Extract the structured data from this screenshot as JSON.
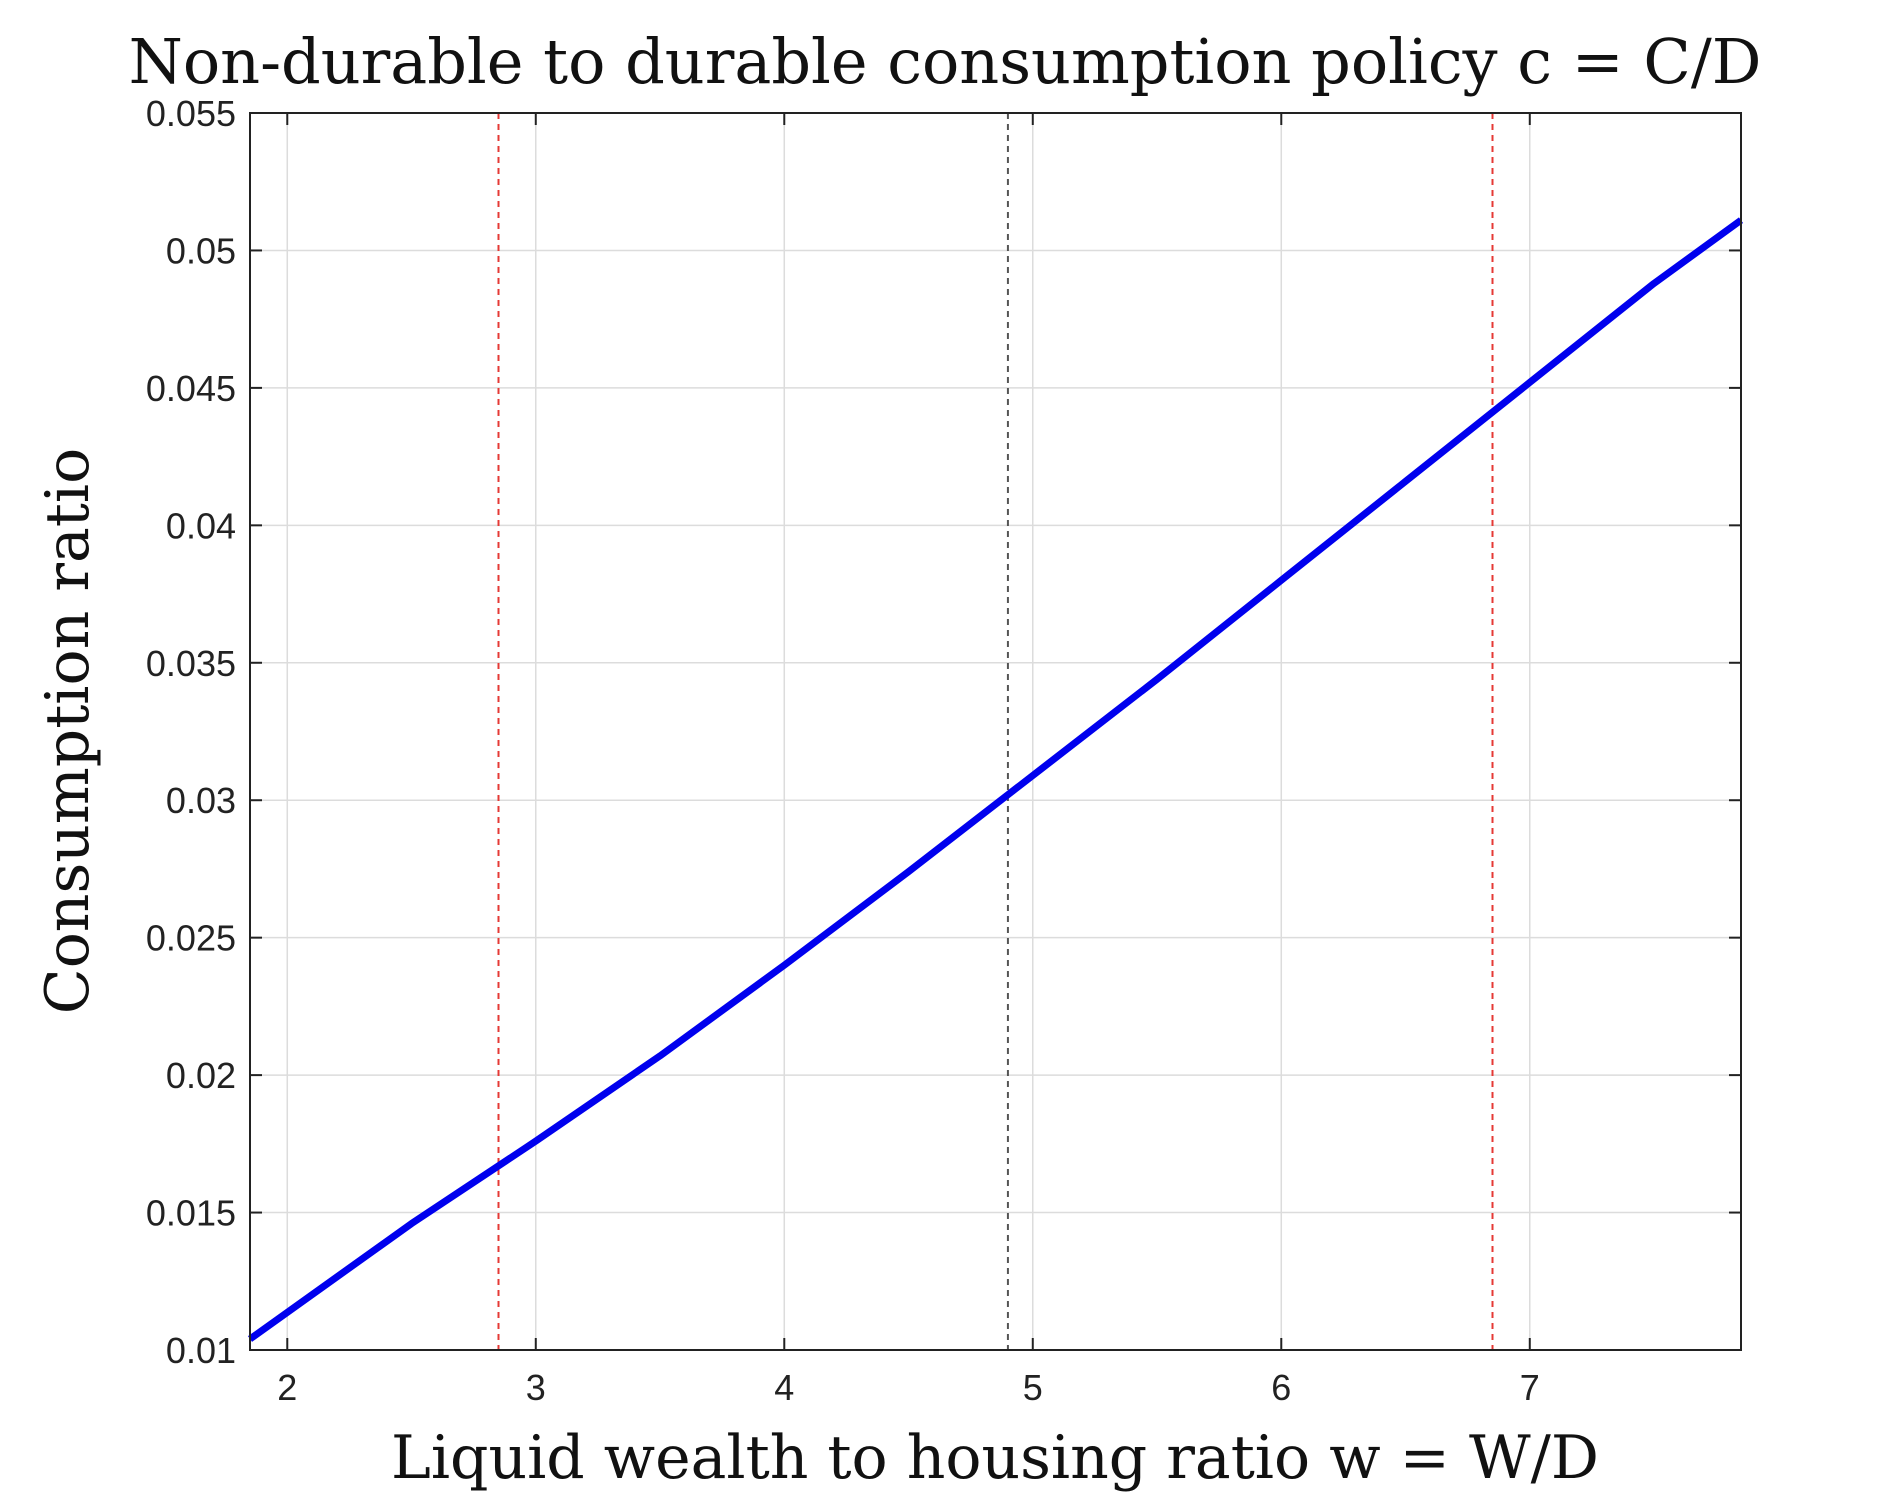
{
  "chart_data": {
    "type": "line",
    "title": "Non-durable to durable consumption policy c = C/D",
    "xlabel": "Liquid wealth to housing ratio w = W/D",
    "ylabel": "Consumption ratio",
    "xlim": [
      1.85,
      7.85
    ],
    "ylim": [
      0.01,
      0.055
    ],
    "xticks": [
      "2",
      "3",
      "4",
      "5",
      "6",
      "7"
    ],
    "xtick_values": [
      2,
      3,
      4,
      5,
      6,
      7
    ],
    "yticks": [
      "0.01",
      "0.015",
      "0.02",
      "0.025",
      "0.03",
      "0.035",
      "0.04",
      "0.045",
      "0.05",
      "0.055"
    ],
    "ytick_values": [
      0.01,
      0.015,
      0.02,
      0.025,
      0.03,
      0.035,
      0.04,
      0.045,
      0.05,
      0.055
    ],
    "grid": true,
    "series": [
      {
        "color": "#0000ee",
        "x": [
          1.85,
          2.5,
          3.0,
          3.5,
          4.0,
          4.5,
          5.0,
          5.5,
          6.0,
          6.5,
          7.0,
          7.5,
          7.85
        ],
        "y": [
          0.0104,
          0.0146,
          0.0176,
          0.0207,
          0.024,
          0.0274,
          0.0309,
          0.0344,
          0.038,
          0.0416,
          0.0452,
          0.0488,
          0.0511
        ]
      }
    ],
    "vlines": [
      {
        "x": 2.85,
        "color": "#e53935",
        "style": "dashed"
      },
      {
        "x": 4.9,
        "color": "#555555",
        "style": "dashed"
      },
      {
        "x": 6.85,
        "color": "#e53935",
        "style": "dashed"
      }
    ]
  }
}
